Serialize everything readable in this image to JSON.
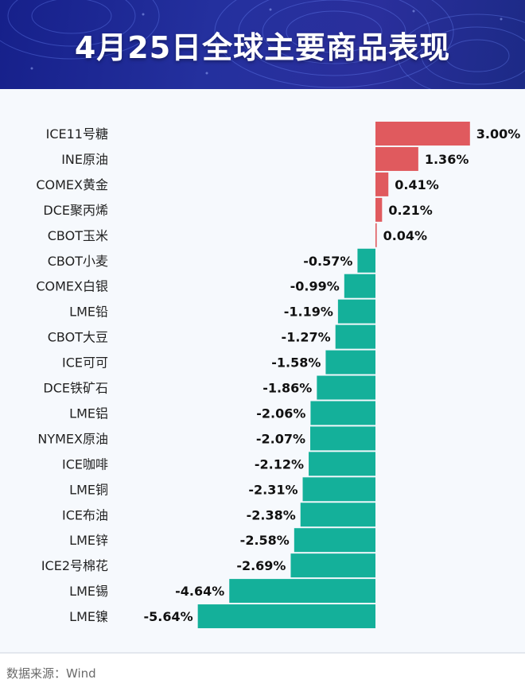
{
  "header": {
    "title": "4月25日全球主要商品表现"
  },
  "source": "数据来源：Wind",
  "colors": {
    "positive": "#e05a5e",
    "negative": "#14b09a",
    "banner": "#24309e"
  },
  "chart_data": {
    "type": "bar",
    "orientation": "horizontal",
    "title": "4月25日全球主要商品表现",
    "xlabel": "",
    "ylabel": "",
    "unit": "%",
    "categories": [
      "ICE11号糖",
      "INE原油",
      "COMEX黄金",
      "DCE聚丙烯",
      "CBOT玉米",
      "CBOT小麦",
      "COMEX白银",
      "LME铅",
      "CBOT大豆",
      "ICE可可",
      "DCE铁矿石",
      "LME铝",
      "NYMEX原油",
      "ICE咖啡",
      "LME铜",
      "ICE布油",
      "LME锌",
      "ICE2号棉花",
      "LME锡",
      "LME镍"
    ],
    "values": [
      3.0,
      1.36,
      0.41,
      0.21,
      0.04,
      -0.57,
      -0.99,
      -1.19,
      -1.27,
      -1.58,
      -1.86,
      -2.06,
      -2.07,
      -2.12,
      -2.31,
      -2.38,
      -2.58,
      -2.69,
      -4.64,
      -5.64
    ],
    "value_labels": [
      "3.00%",
      "1.36%",
      "0.41%",
      "0.21%",
      "0.04%",
      "-0.57%",
      "-0.99%",
      "-1.19%",
      "-1.27%",
      "-1.58%",
      "-1.86%",
      "-2.06%",
      "-2.07%",
      "-2.12%",
      "-2.31%",
      "-2.38%",
      "-2.58%",
      "-2.69%",
      "-4.64%",
      "-5.64%"
    ],
    "grid": false,
    "legend": "none"
  }
}
